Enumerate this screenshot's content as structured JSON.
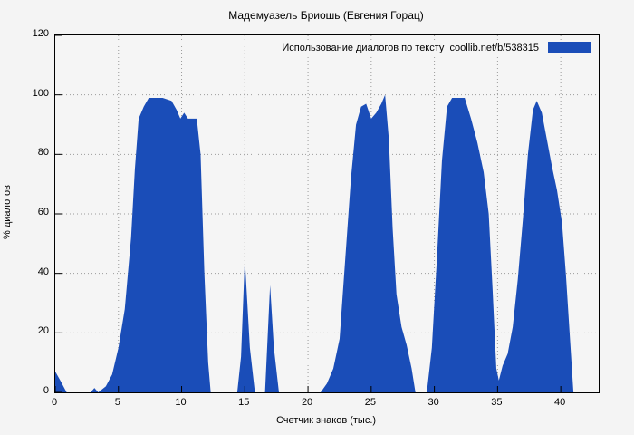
{
  "title": "Мадемуазель Бриошь (Евгения Горац)",
  "legend": {
    "label": "Использование диалогов по тексту  coollib.net/b/538315",
    "swatch_color": "#1a4db8"
  },
  "colors": {
    "background": "#f4f4f4",
    "plot_background": "#f5f5f5",
    "grid": "#9a9a9a",
    "axis": "#000000",
    "fill": "#1a4db8"
  },
  "chart_data": {
    "type": "area",
    "title": "Мадемуазель Бриошь (Евгения Горац)",
    "xlabel": "Счетчик знаков (тыс.)",
    "ylabel": "% диалогов",
    "xlim": [
      0,
      43
    ],
    "ylim": [
      0,
      120
    ],
    "x_ticks": [
      0,
      5,
      10,
      15,
      20,
      25,
      30,
      35,
      40
    ],
    "y_ticks": [
      0,
      20,
      40,
      60,
      80,
      100,
      120
    ],
    "grid": true,
    "legend_position": "top-right",
    "fill_color": "#1a4db8",
    "series": [
      {
        "name": "Использование диалогов по тексту  coollib.net/b/538315",
        "points": [
          [
            0,
            0
          ],
          [
            0,
            7
          ],
          [
            0.4,
            4
          ],
          [
            0.9,
            0
          ],
          [
            2.8,
            0
          ],
          [
            3.1,
            1.5
          ],
          [
            3.4,
            0
          ],
          [
            4,
            2
          ],
          [
            4.5,
            6
          ],
          [
            5,
            15
          ],
          [
            5.5,
            28
          ],
          [
            6,
            52
          ],
          [
            6.3,
            75
          ],
          [
            6.6,
            92
          ],
          [
            7,
            96
          ],
          [
            7.4,
            99
          ],
          [
            8.5,
            99
          ],
          [
            9.2,
            98
          ],
          [
            9.6,
            95
          ],
          [
            9.9,
            92
          ],
          [
            10.2,
            94
          ],
          [
            10.5,
            92
          ],
          [
            11.2,
            92
          ],
          [
            11.5,
            80
          ],
          [
            11.8,
            40
          ],
          [
            12.1,
            10
          ],
          [
            12.3,
            0
          ],
          [
            14.4,
            0
          ],
          [
            14.7,
            12
          ],
          [
            15,
            45
          ],
          [
            15.4,
            15
          ],
          [
            15.8,
            0
          ],
          [
            16.6,
            0
          ],
          [
            17,
            36
          ],
          [
            17.3,
            15
          ],
          [
            17.7,
            0
          ],
          [
            21,
            0
          ],
          [
            21.5,
            3
          ],
          [
            22,
            8
          ],
          [
            22.5,
            18
          ],
          [
            23,
            48
          ],
          [
            23.4,
            72
          ],
          [
            23.8,
            90
          ],
          [
            24.2,
            96
          ],
          [
            24.6,
            97
          ],
          [
            25,
            92
          ],
          [
            25.4,
            94
          ],
          [
            25.8,
            97
          ],
          [
            26.1,
            100
          ],
          [
            26.4,
            85
          ],
          [
            26.7,
            55
          ],
          [
            27,
            33
          ],
          [
            27.4,
            22
          ],
          [
            27.8,
            16
          ],
          [
            28.2,
            8
          ],
          [
            28.5,
            0
          ],
          [
            29.4,
            0
          ],
          [
            29.8,
            15
          ],
          [
            30.2,
            45
          ],
          [
            30.6,
            78
          ],
          [
            31,
            96
          ],
          [
            31.4,
            99
          ],
          [
            32.4,
            99
          ],
          [
            32.9,
            92
          ],
          [
            33.4,
            84
          ],
          [
            33.9,
            74
          ],
          [
            34.3,
            60
          ],
          [
            34.6,
            35
          ],
          [
            34.9,
            8
          ],
          [
            35.1,
            4
          ],
          [
            35.4,
            9
          ],
          [
            35.8,
            13
          ],
          [
            36.2,
            22
          ],
          [
            36.6,
            38
          ],
          [
            37,
            58
          ],
          [
            37.4,
            80
          ],
          [
            37.8,
            95
          ],
          [
            38.1,
            98
          ],
          [
            38.5,
            94
          ],
          [
            38.9,
            85
          ],
          [
            39.3,
            76
          ],
          [
            39.7,
            68
          ],
          [
            40.1,
            57
          ],
          [
            40.4,
            40
          ],
          [
            40.7,
            20
          ],
          [
            41,
            0
          ]
        ]
      }
    ]
  }
}
